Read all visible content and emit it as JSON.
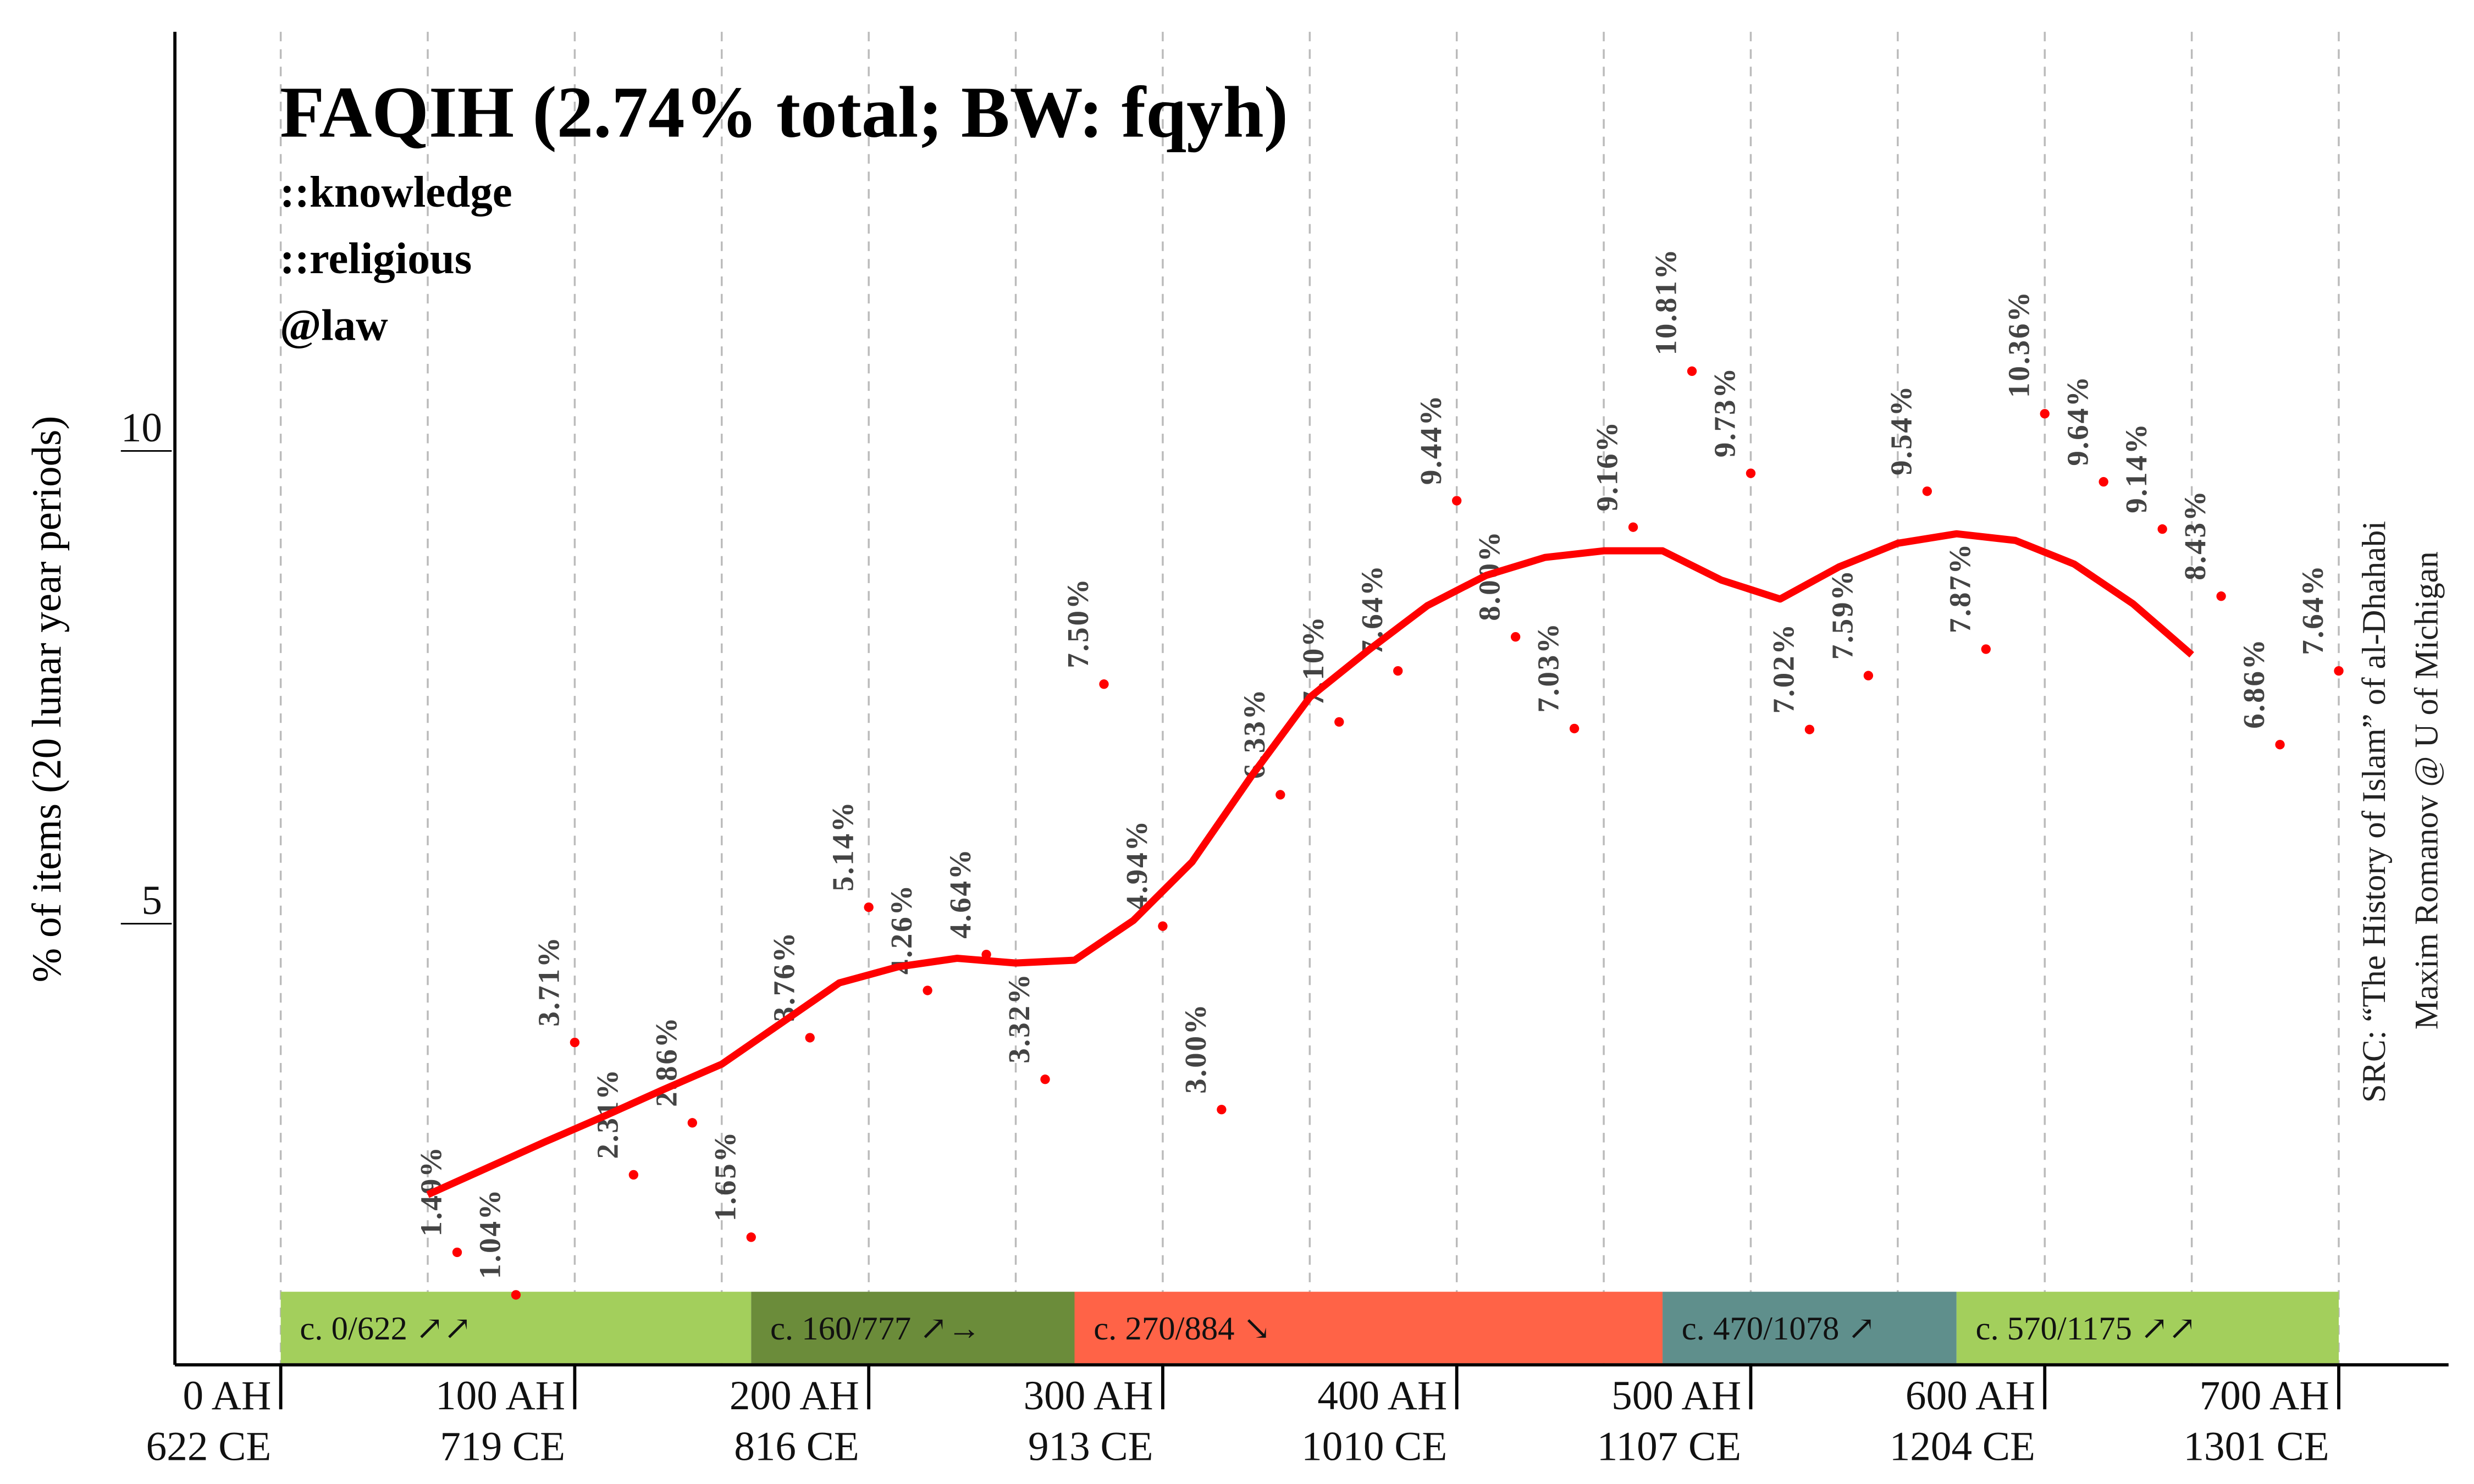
{
  "chart_data": {
    "type": "line",
    "title": "FAQIH (2.74% total; BW: fqyh)",
    "tags": [
      "::knowledge",
      "::religious",
      "@law"
    ],
    "y_label": "% of items (20 lunar year periods)",
    "source": [
      "SRC: “The History of Islam” of al-Dhahabi",
      "Maxim Romanov @ U of Michigan"
    ],
    "xlim": [
      -36,
      746
    ],
    "ylim": [
      0.3,
      14.4
    ],
    "yticks": [
      5,
      10
    ],
    "xticks": [
      {
        "value": 0,
        "label": "0 AH"
      },
      {
        "value": 100,
        "label": "100 AH"
      },
      {
        "value": 200,
        "label": "200 AH"
      },
      {
        "value": 300,
        "label": "300 AH"
      },
      {
        "value": 400,
        "label": "400 AH"
      },
      {
        "value": 500,
        "label": "500 AH"
      },
      {
        "value": 600,
        "label": "600 AH"
      },
      {
        "value": 700,
        "label": "700 AH"
      }
    ],
    "xtick_labels_ce": [
      "622 CE",
      "719 CE",
      "816 CE",
      "913 CE",
      "1010 CE",
      "1107 CE",
      "1204 CE",
      "1301 CE"
    ],
    "xgrid": [
      0,
      50,
      100,
      150,
      200,
      250,
      300,
      350,
      400,
      450,
      500,
      550,
      600,
      650,
      700
    ],
    "series": [
      {
        "style": "points",
        "color": "#ff0000",
        "x": [
          60,
          80,
          100,
          120,
          140,
          160,
          180,
          200,
          220,
          240,
          260,
          280,
          300,
          320,
          340,
          360,
          380,
          400,
          420,
          440,
          460,
          480,
          500,
          520,
          540,
          560,
          580,
          600,
          620,
          640,
          660,
          680,
          700
        ],
        "values": [
          1.49,
          1.04,
          3.71,
          2.31,
          2.86,
          1.65,
          3.76,
          5.14,
          4.26,
          4.64,
          3.32,
          7.5,
          4.94,
          3.0,
          6.33,
          7.1,
          7.64,
          9.44,
          8.0,
          7.03,
          9.16,
          10.81,
          9.73,
          7.02,
          7.59,
          9.54,
          7.87,
          10.36,
          9.64,
          9.14,
          8.43,
          6.86,
          7.64
        ],
        "value_labels": [
          "1.49%",
          "1.04%",
          "3.71%",
          "2.31%",
          "2.86%",
          "1.65%",
          "3.76%",
          "5.14%",
          "4.26%",
          "4.64%",
          "3.32%",
          "7.50%",
          "4.94%",
          "3.00%",
          "6.33%",
          "7.10%",
          "7.64%",
          "9.44%",
          "8.00%",
          "7.03%",
          "9.16%",
          "10.81%",
          "9.73%",
          "7.02%",
          "7.59%",
          "9.54%",
          "7.87%",
          "10.36%",
          "9.64%",
          "9.14%",
          "8.43%",
          "6.86%",
          "7.64%"
        ]
      },
      {
        "style": "line",
        "color": "#ff0000",
        "x": [
          50,
          70,
          90,
          110,
          130,
          150,
          170,
          190,
          210,
          230,
          250,
          270,
          290,
          310,
          330,
          350,
          370,
          390,
          410,
          430,
          450,
          470,
          490,
          510,
          530,
          550,
          570,
          590,
          610,
          630,
          650
        ],
        "values": [
          2.1,
          2.38,
          2.66,
          2.93,
          3.21,
          3.48,
          3.91,
          4.34,
          4.51,
          4.6,
          4.55,
          4.58,
          5.0,
          5.62,
          6.52,
          7.36,
          7.86,
          8.33,
          8.65,
          8.84,
          8.91,
          8.91,
          8.6,
          8.4,
          8.74,
          8.99,
          9.09,
          9.02,
          8.77,
          8.35,
          7.81
        ]
      }
    ],
    "periods": [
      {
        "start": 0,
        "end": 160,
        "label": "c. 0/622 ↗↗",
        "color": "#a3cf5c"
      },
      {
        "start": 160,
        "end": 270,
        "label": "c. 160/777 ↗→",
        "color": "#6b8c3a"
      },
      {
        "start": 270,
        "end": 470,
        "label": "c. 270/884 ↘",
        "color": "#ff6347"
      },
      {
        "start": 470,
        "end": 570,
        "label": "c. 470/1078 ↗",
        "color": "#5f8f8c"
      },
      {
        "start": 570,
        "end": 700,
        "label": "c. 570/1175 ↗↗",
        "color": "#a3cf5c"
      }
    ]
  }
}
